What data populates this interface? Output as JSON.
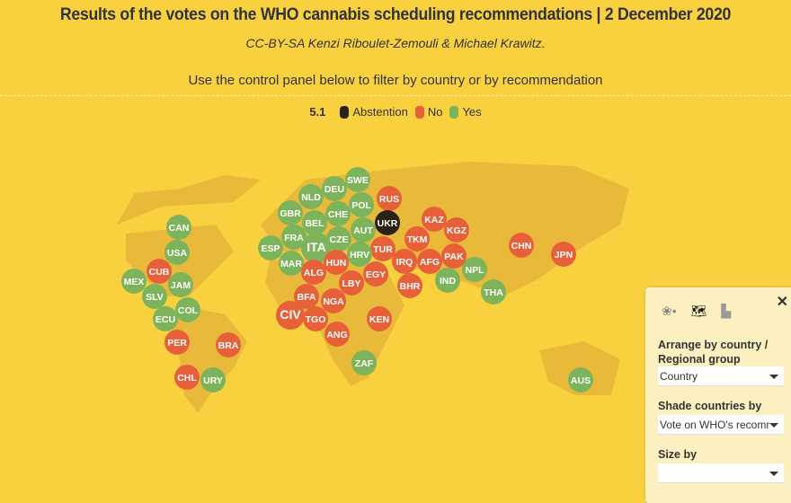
{
  "header": {
    "title": "Results of the votes on the WHO cannabis scheduling recommendations | 2 December 2020",
    "credit": "CC-BY-SA Kenzi Riboulet-Zemouli & Michael Krawitz.",
    "instruction": "Use the control panel below to filter by country or by recommendation"
  },
  "legend": {
    "label": "5.1",
    "items": [
      {
        "label": "Abstention",
        "color": "#2a2315"
      },
      {
        "label": "No",
        "color": "#e8603a"
      },
      {
        "label": "Yes",
        "color": "#7db45b"
      }
    ]
  },
  "colors": {
    "background": "#f9d13f",
    "land": "#e9b93a",
    "abstention": "#2a2315",
    "no": "#e8603a",
    "yes": "#7db45b"
  },
  "countries": [
    {
      "code": "CAN",
      "vote": "yes"
    },
    {
      "code": "USA",
      "vote": "yes"
    },
    {
      "code": "CUB",
      "vote": "no"
    },
    {
      "code": "MEX",
      "vote": "yes"
    },
    {
      "code": "JAM",
      "vote": "yes"
    },
    {
      "code": "SLV",
      "vote": "yes"
    },
    {
      "code": "COL",
      "vote": "yes"
    },
    {
      "code": "ECU",
      "vote": "yes"
    },
    {
      "code": "PER",
      "vote": "no"
    },
    {
      "code": "BRA",
      "vote": "no"
    },
    {
      "code": "CHL",
      "vote": "no"
    },
    {
      "code": "URY",
      "vote": "yes"
    },
    {
      "code": "SWE",
      "vote": "yes"
    },
    {
      "code": "DEU",
      "vote": "yes"
    },
    {
      "code": "NLD",
      "vote": "yes"
    },
    {
      "code": "RUS",
      "vote": "no"
    },
    {
      "code": "GBR",
      "vote": "yes"
    },
    {
      "code": "CHE",
      "vote": "yes"
    },
    {
      "code": "POL",
      "vote": "yes"
    },
    {
      "code": "BEL",
      "vote": "yes"
    },
    {
      "code": "UKR",
      "vote": "abstention"
    },
    {
      "code": "AUT",
      "vote": "yes"
    },
    {
      "code": "KAZ",
      "vote": "no"
    },
    {
      "code": "KGZ",
      "vote": "no"
    },
    {
      "code": "FRA",
      "vote": "yes"
    },
    {
      "code": "CZE",
      "vote": "yes"
    },
    {
      "code": "ITA",
      "vote": "yes"
    },
    {
      "code": "ESP",
      "vote": "yes"
    },
    {
      "code": "TKM",
      "vote": "no"
    },
    {
      "code": "TUR",
      "vote": "no"
    },
    {
      "code": "PAK",
      "vote": "no"
    },
    {
      "code": "MAR",
      "vote": "yes"
    },
    {
      "code": "HUN",
      "vote": "no"
    },
    {
      "code": "HRV",
      "vote": "yes"
    },
    {
      "code": "IRQ",
      "vote": "no"
    },
    {
      "code": "AFG",
      "vote": "no"
    },
    {
      "code": "ALG",
      "vote": "no"
    },
    {
      "code": "EGY",
      "vote": "no"
    },
    {
      "code": "LBY",
      "vote": "no"
    },
    {
      "code": "IND",
      "vote": "yes"
    },
    {
      "code": "NPL",
      "vote": "yes"
    },
    {
      "code": "CHN",
      "vote": "no"
    },
    {
      "code": "JPN",
      "vote": "no"
    },
    {
      "code": "THA",
      "vote": "yes"
    },
    {
      "code": "BHR",
      "vote": "no"
    },
    {
      "code": "BFA",
      "vote": "no"
    },
    {
      "code": "NGA",
      "vote": "no"
    },
    {
      "code": "CIV",
      "vote": "no"
    },
    {
      "code": "TGO",
      "vote": "no"
    },
    {
      "code": "KEN",
      "vote": "no"
    },
    {
      "code": "ANG",
      "vote": "no"
    },
    {
      "code": "ZAF",
      "vote": "yes"
    },
    {
      "code": "AUS",
      "vote": "yes"
    }
  ],
  "panel": {
    "arrange_label": "Arrange by country / Regional group",
    "arrange_value": "Country",
    "shade_label": "Shade countries by",
    "shade_value": "Vote on WHO's recommn",
    "size_label": "Size by",
    "size_value": ""
  }
}
